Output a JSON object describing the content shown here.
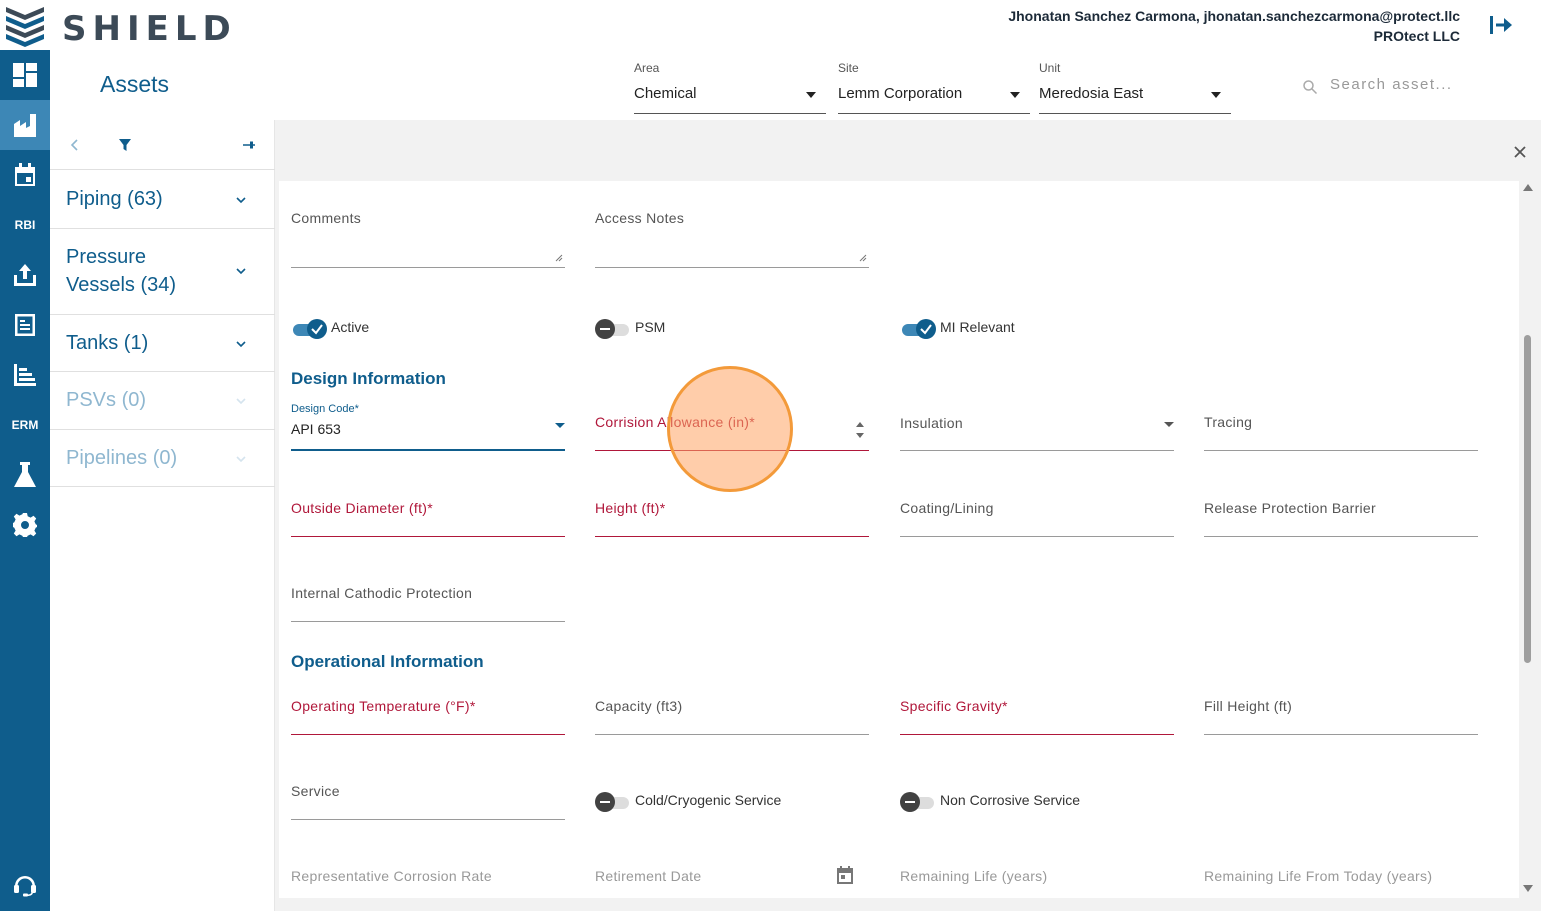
{
  "app": {
    "logo_text": "SHIELD",
    "user_line": "Jhonatan Sanchez Carmona, jhonatan.sanchezcarmona@protect.llc",
    "company": "PROtect LLC"
  },
  "rail": {
    "rbi_label": "RBI",
    "erm_label": "ERM"
  },
  "header": {
    "title": "Assets",
    "area": {
      "label": "Area",
      "value": "Chemical"
    },
    "site": {
      "label": "Site",
      "value": "Lemm Corporation"
    },
    "unit": {
      "label": "Unit",
      "value": "Meredosia East"
    },
    "search_placeholder": "Search asset..."
  },
  "sidebar": {
    "items": [
      {
        "label": "Piping (63)"
      },
      {
        "label": "Pressure Vessels (34)",
        "line1": "Pressure",
        "line2": "Vessels (34)"
      },
      {
        "label": "Tanks (1)"
      },
      {
        "label": "PSVs (0)"
      },
      {
        "label": "Pipelines (0)"
      }
    ]
  },
  "form": {
    "comments_label": "Comments",
    "access_notes_label": "Access Notes",
    "toggles": {
      "active": "Active",
      "psm": "PSM",
      "mi_relevant": "MI Relevant",
      "cold_cryogenic": "Cold/Cryogenic Service",
      "non_corrosive": "Non Corrosive Service"
    },
    "design_section": "Design Information",
    "design_code_label": "Design Code*",
    "design_code_value": "API 653",
    "corrosion_allowance": "Corrision Allowance (in)*",
    "insulation": "Insulation",
    "tracing": "Tracing",
    "outside_diameter": "Outside Diameter (ft)*",
    "height": "Height (ft)*",
    "coating_lining": "Coating/Lining",
    "release_protection": "Release Protection Barrier",
    "internal_cathodic": "Internal Cathodic Protection",
    "operational_section": "Operational Information",
    "operating_temperature": "Operating Temperature (°F)*",
    "capacity": "Capacity (ft3)",
    "specific_gravity": "Specific Gravity*",
    "fill_height": "Fill Height (ft)",
    "service": "Service",
    "rep_corrosion_rate": "Representative Corrosion Rate",
    "retirement_date": "Retirement Date",
    "remaining_life": "Remaining Life (years)",
    "remaining_life_today": "Remaining Life From Today (years)"
  },
  "colors": {
    "brand": "#0f5d8c",
    "required": "#b0173a",
    "cursor_highlight": "#f39a3a"
  }
}
